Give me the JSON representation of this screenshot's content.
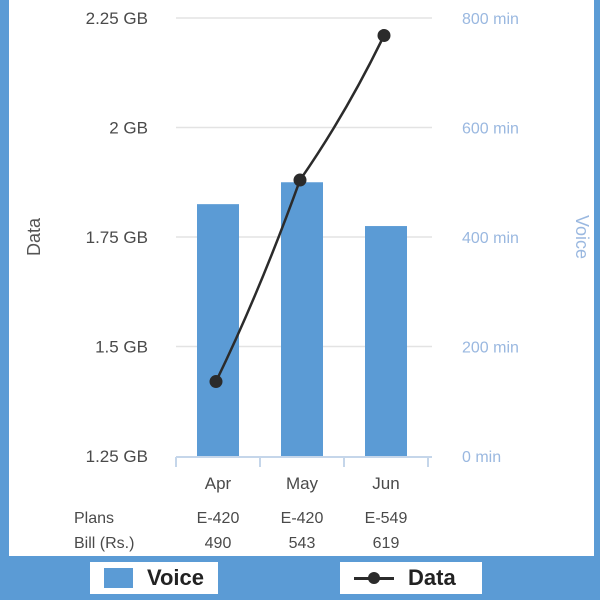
{
  "chart_data": {
    "type": "bar+line",
    "categories": [
      "Apr",
      "May",
      "Jun"
    ],
    "series": [
      {
        "name": "Voice",
        "type": "bar",
        "axis": "right",
        "values": [
          460,
          500,
          420
        ],
        "color": "#5b9bd5"
      },
      {
        "name": "Data",
        "type": "line",
        "axis": "left",
        "values": [
          1.42,
          1.88,
          2.21
        ],
        "color": "#2b2b2b"
      }
    ],
    "y_left": {
      "label": "Data",
      "ylim": [
        1.25,
        2.25
      ],
      "ticks": [
        {
          "value": 1.25,
          "label": "1.25 GB"
        },
        {
          "value": 1.5,
          "label": "1.5 GB"
        },
        {
          "value": 1.75,
          "label": "1.75 GB"
        },
        {
          "value": 2.0,
          "label": "2 GB"
        },
        {
          "value": 2.25,
          "label": "2.25 GB"
        }
      ]
    },
    "y_right": {
      "label": "Voice",
      "ylim": [
        0,
        800
      ],
      "color": "#9ab8e0",
      "ticks": [
        {
          "value": 0,
          "label": "0 min"
        },
        {
          "value": 200,
          "label": "200 min"
        },
        {
          "value": 400,
          "label": "400 min"
        },
        {
          "value": 600,
          "label": "600 min"
        },
        {
          "value": 800,
          "label": "800 min"
        }
      ]
    },
    "grid": true,
    "legend": "bottom",
    "table": {
      "rows": [
        {
          "label": "Plans",
          "values": [
            "E-420",
            "E-420",
            "E-549"
          ]
        },
        {
          "label": "Bill (Rs.)",
          "values": [
            "490",
            "543",
            "619"
          ]
        }
      ]
    }
  },
  "legend": {
    "voice_label": "Voice",
    "data_label": "Data"
  }
}
